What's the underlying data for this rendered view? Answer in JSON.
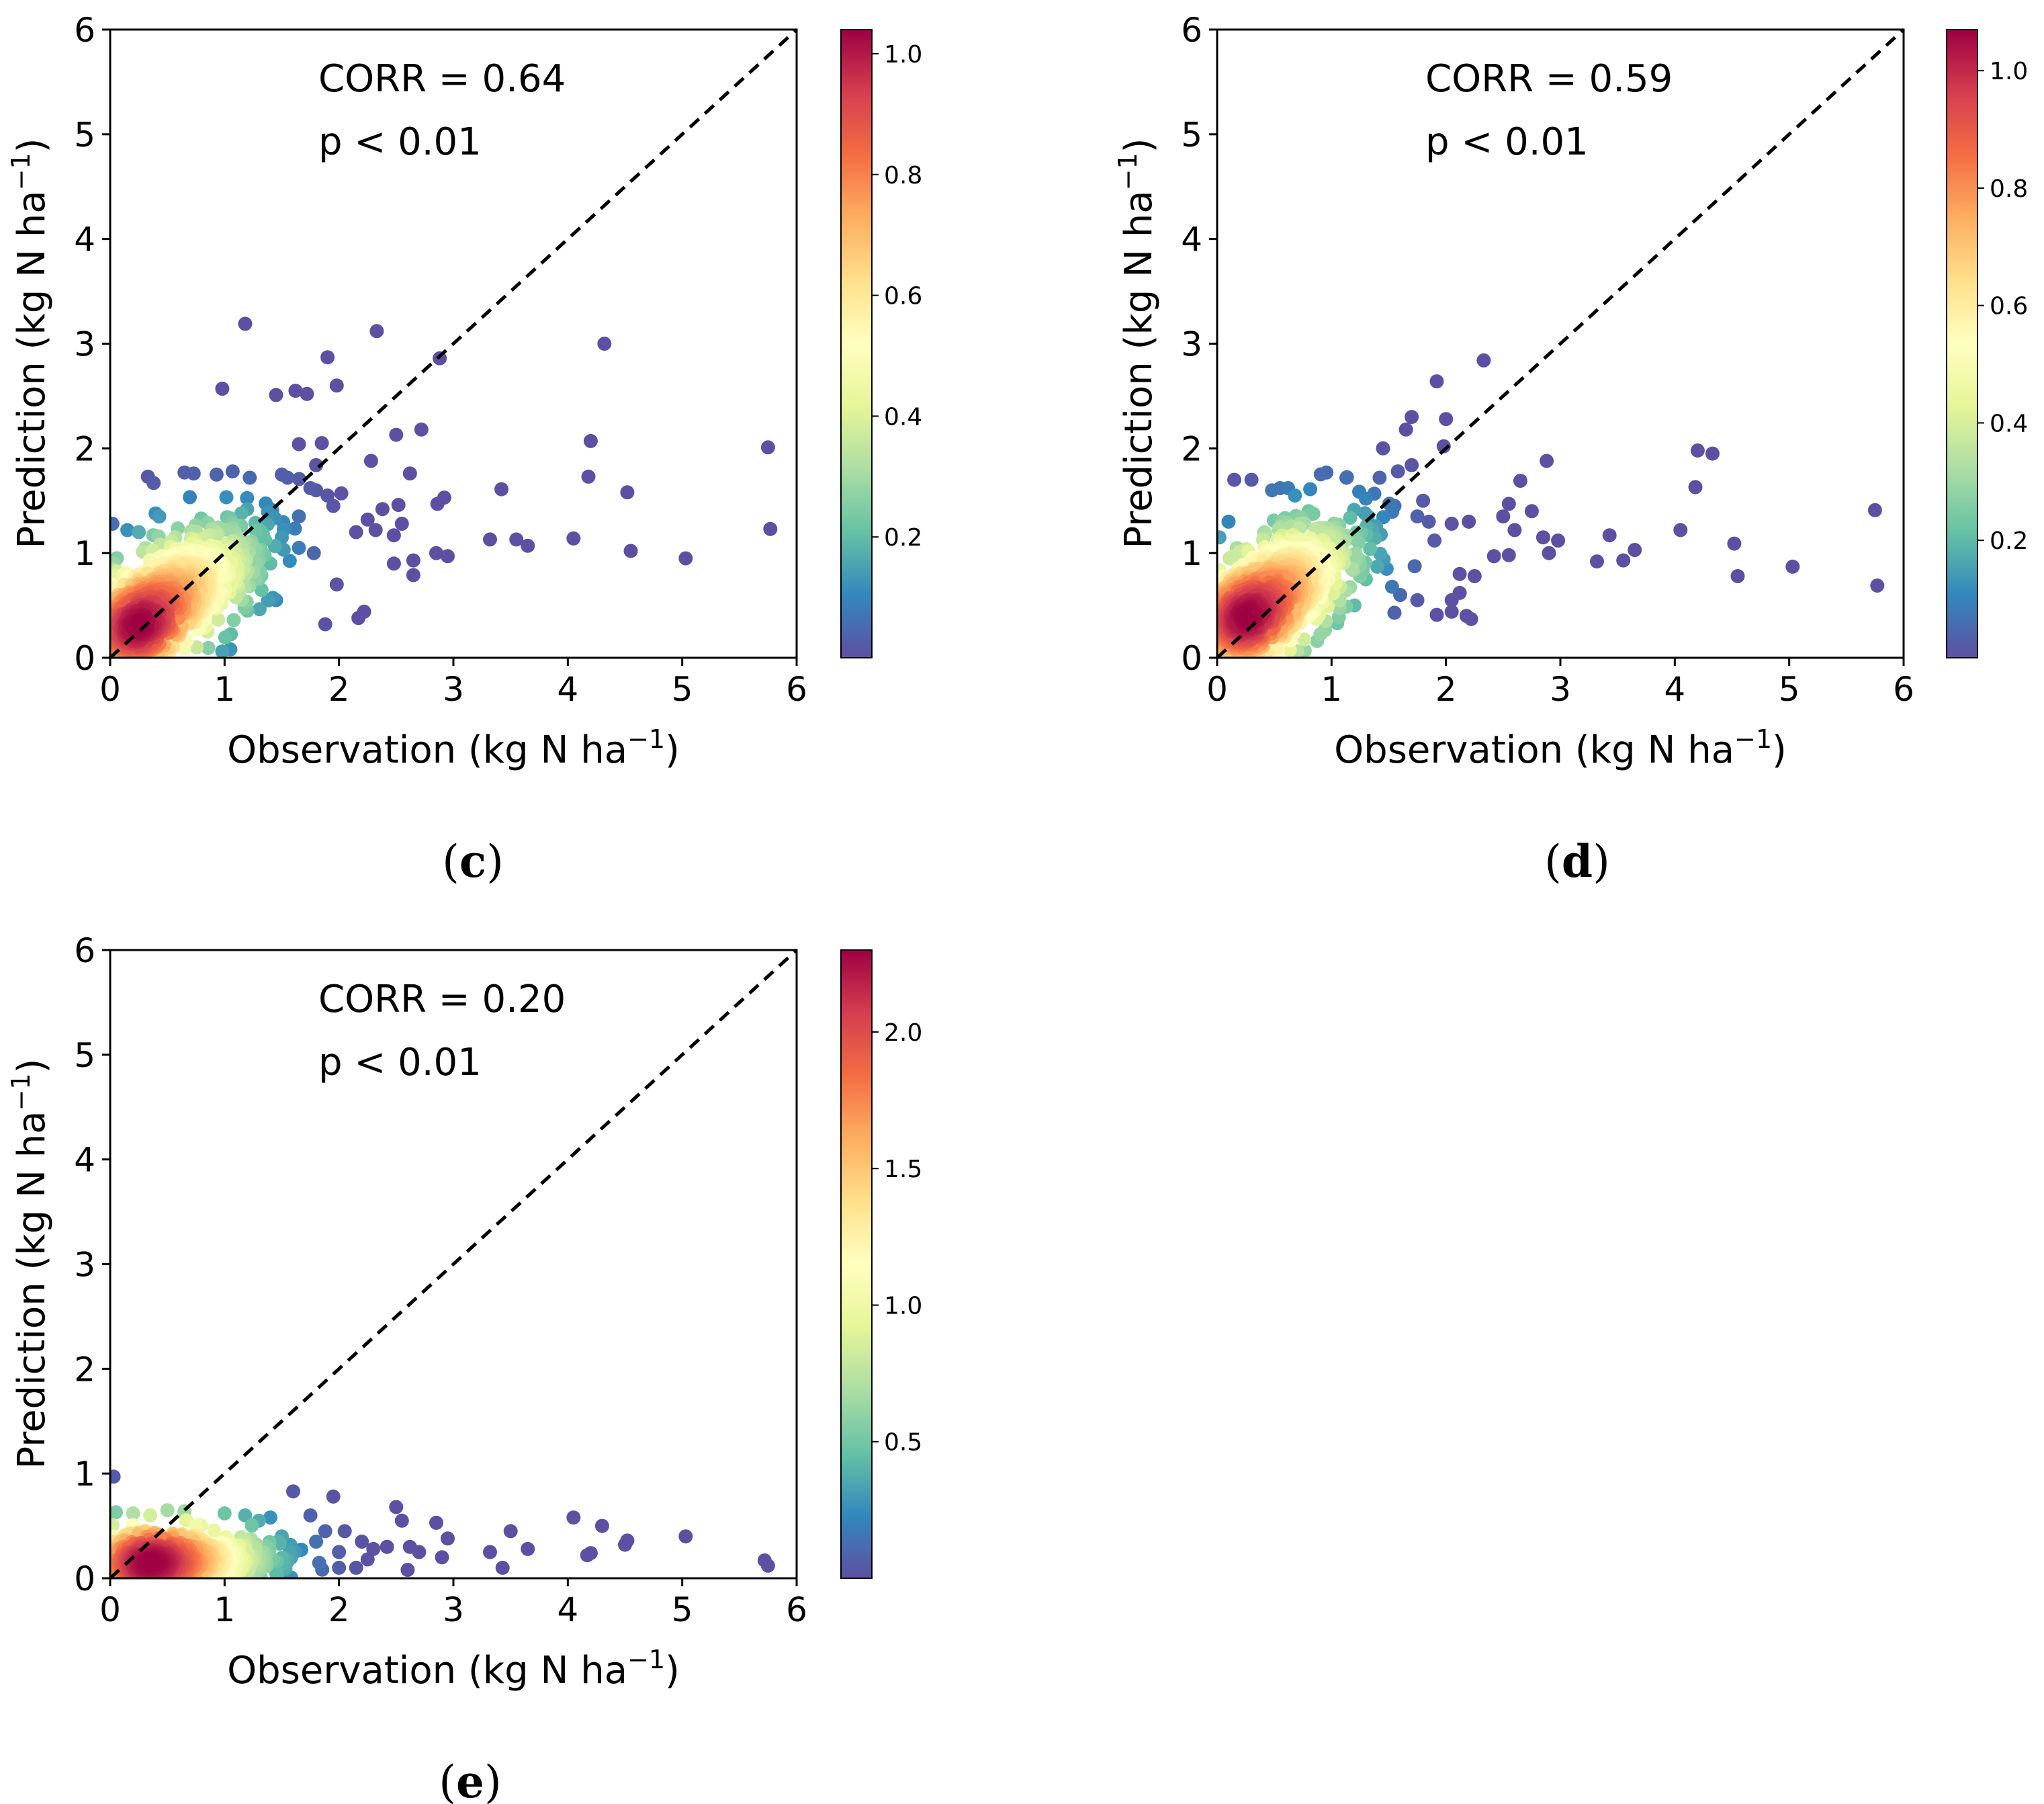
{
  "chart_data": [
    {
      "id": "c",
      "type": "scatter",
      "panel_label": "c",
      "xlabel": "Observation (kg N ha",
      "ylabel": "Prediction (kg N ha",
      "label_unit_exp": "−1",
      "label_close": ")",
      "xlim": [
        0,
        6
      ],
      "ylim": [
        0,
        6
      ],
      "xticks": [
        0,
        1,
        2,
        3,
        4,
        5,
        6
      ],
      "yticks": [
        0,
        1,
        2,
        3,
        4,
        5,
        6
      ],
      "annotation_corr": "CORR = 0.64",
      "annotation_p": "p < 0.01",
      "reference_line": "1:1 dashed",
      "colorbar": {
        "min": 0,
        "max": 1.04,
        "ticks": [
          0.2,
          0.4,
          0.6,
          0.8,
          1.0
        ],
        "tick_labels": [
          "0.2",
          "0.4",
          "0.6",
          "0.8",
          "1.0"
        ]
      },
      "outliers": [
        [
          1.18,
          3.19
        ],
        [
          2.33,
          3.12
        ],
        [
          4.32,
          3.0
        ],
        [
          1.9,
          2.87
        ],
        [
          2.88,
          2.86
        ],
        [
          0.98,
          2.57
        ],
        [
          1.98,
          2.6
        ],
        [
          1.45,
          2.51
        ],
        [
          1.62,
          2.55
        ],
        [
          1.72,
          2.52
        ],
        [
          2.5,
          2.13
        ],
        [
          2.72,
          2.18
        ],
        [
          1.65,
          2.04
        ],
        [
          1.85,
          2.05
        ],
        [
          4.2,
          2.07
        ],
        [
          5.75,
          2.01
        ],
        [
          2.28,
          1.88
        ],
        [
          1.8,
          1.84
        ],
        [
          2.62,
          1.76
        ],
        [
          4.18,
          1.73
        ],
        [
          3.42,
          1.61
        ],
        [
          4.52,
          1.58
        ],
        [
          2.92,
          1.53
        ],
        [
          2.52,
          1.46
        ],
        [
          2.86,
          1.47
        ],
        [
          2.38,
          1.42
        ],
        [
          2.25,
          1.32
        ],
        [
          2.55,
          1.28
        ],
        [
          5.77,
          1.23
        ],
        [
          2.32,
          1.22
        ],
        [
          2.15,
          1.2
        ],
        [
          2.48,
          1.17
        ],
        [
          3.32,
          1.13
        ],
        [
          3.55,
          1.13
        ],
        [
          3.65,
          1.07
        ],
        [
          4.05,
          1.14
        ],
        [
          2.85,
          1.0
        ],
        [
          2.95,
          0.97
        ],
        [
          4.55,
          1.02
        ],
        [
          5.03,
          0.95
        ],
        [
          2.48,
          0.9
        ],
        [
          2.65,
          0.93
        ],
        [
          2.65,
          0.79
        ],
        [
          1.98,
          0.7
        ],
        [
          2.22,
          0.44
        ],
        [
          2.17,
          0.38
        ],
        [
          1.88,
          0.32
        ],
        [
          1.05,
          0.08
        ],
        [
          0.98,
          0.06
        ],
        [
          0.02,
          1.28
        ],
        [
          0.33,
          1.73
        ],
        [
          0.38,
          1.67
        ],
        [
          0.65,
          1.77
        ],
        [
          0.73,
          1.76
        ],
        [
          0.93,
          1.75
        ],
        [
          1.07,
          1.78
        ],
        [
          1.22,
          1.72
        ],
        [
          1.5,
          1.75
        ],
        [
          1.55,
          1.72
        ],
        [
          1.75,
          1.62
        ],
        [
          1.8,
          1.6
        ],
        [
          1.9,
          1.55
        ],
        [
          2.02,
          1.57
        ],
        [
          1.95,
          1.45
        ],
        [
          1.65,
          1.35
        ],
        [
          1.5,
          1.15
        ],
        [
          1.65,
          1.05
        ],
        [
          1.78,
          1.0
        ],
        [
          1.4,
          0.9
        ],
        [
          1.3,
          0.75
        ],
        [
          1.45,
          0.55
        ],
        [
          1.2,
          0.45
        ],
        [
          0.85,
          0.25
        ],
        [
          0.55,
          0.1
        ],
        [
          1.08,
          0.36
        ],
        [
          0.15,
          1.22
        ],
        [
          0.25,
          1.2
        ],
        [
          1.35,
          0.98
        ]
      ],
      "cluster": {
        "cx": 0.55,
        "cy": 0.62,
        "sx": 0.38,
        "sy": 0.34,
        "rho": 0.62,
        "n": 700,
        "seed": 11,
        "dense_cx": 0.15,
        "dense_cy": 0.22,
        "dense_sx": 0.14,
        "dense_sy": 0.14,
        "dense_n": 260
      }
    },
    {
      "id": "d",
      "type": "scatter",
      "panel_label": "d",
      "xlabel": "Observation (kg N ha",
      "ylabel": "Prediction (kg N ha",
      "label_unit_exp": "−1",
      "label_close": ")",
      "xlim": [
        0,
        6
      ],
      "ylim": [
        0,
        6
      ],
      "xticks": [
        0,
        1,
        2,
        3,
        4,
        5,
        6
      ],
      "yticks": [
        0,
        1,
        2,
        3,
        4,
        5,
        6
      ],
      "annotation_corr": "CORR = 0.59",
      "annotation_p": "p < 0.01",
      "reference_line": "1:1 dashed",
      "colorbar": {
        "min": 0,
        "max": 1.07,
        "ticks": [
          0.2,
          0.4,
          0.6,
          0.8,
          1.0
        ],
        "tick_labels": [
          "0.2",
          "0.4",
          "0.6",
          "0.8",
          "1.0"
        ]
      },
      "outliers": [
        [
          2.33,
          2.84
        ],
        [
          1.92,
          2.64
        ],
        [
          1.7,
          2.3
        ],
        [
          2.0,
          2.28
        ],
        [
          1.65,
          2.18
        ],
        [
          1.98,
          2.02
        ],
        [
          1.45,
          2.0
        ],
        [
          2.88,
          1.88
        ],
        [
          1.42,
          1.72
        ],
        [
          1.7,
          1.84
        ],
        [
          1.13,
          1.72
        ],
        [
          4.2,
          1.98
        ],
        [
          4.33,
          1.95
        ],
        [
          4.18,
          1.63
        ],
        [
          5.75,
          1.41
        ],
        [
          2.55,
          1.47
        ],
        [
          2.65,
          1.69
        ],
        [
          2.75,
          1.4
        ],
        [
          1.3,
          1.52
        ],
        [
          1.55,
          1.45
        ],
        [
          1.75,
          1.35
        ],
        [
          1.85,
          1.3
        ],
        [
          2.05,
          1.28
        ],
        [
          2.2,
          1.3
        ],
        [
          2.5,
          1.35
        ],
        [
          2.6,
          1.22
        ],
        [
          2.85,
          1.15
        ],
        [
          2.98,
          1.12
        ],
        [
          2.9,
          1.0
        ],
        [
          2.55,
          0.98
        ],
        [
          2.42,
          0.97
        ],
        [
          3.32,
          0.92
        ],
        [
          3.43,
          1.17
        ],
        [
          3.55,
          0.93
        ],
        [
          3.65,
          1.03
        ],
        [
          4.05,
          1.22
        ],
        [
          4.52,
          1.09
        ],
        [
          4.55,
          0.78
        ],
        [
          5.03,
          0.87
        ],
        [
          5.77,
          0.69
        ],
        [
          2.12,
          0.8
        ],
        [
          2.25,
          0.78
        ],
        [
          2.12,
          0.62
        ],
        [
          2.05,
          0.55
        ],
        [
          2.05,
          0.44
        ],
        [
          1.92,
          0.41
        ],
        [
          2.18,
          0.4
        ],
        [
          2.22,
          0.37
        ],
        [
          1.75,
          0.55
        ],
        [
          1.6,
          0.6
        ],
        [
          1.55,
          0.43
        ],
        [
          1.2,
          0.5
        ],
        [
          1.05,
          0.33
        ],
        [
          0.95,
          0.35
        ],
        [
          0.15,
          1.7
        ],
        [
          0.3,
          1.7
        ],
        [
          0.48,
          1.6
        ],
        [
          0.62,
          1.62
        ],
        [
          0.68,
          1.55
        ],
        [
          0.1,
          1.3
        ],
        [
          0.02,
          1.15
        ],
        [
          0.55,
          1.62
        ],
        [
          1.58,
          1.78
        ],
        [
          1.8,
          1.5
        ],
        [
          1.4,
          0.87
        ],
        [
          1.3,
          0.75
        ],
        [
          1.9,
          1.12
        ]
      ],
      "cluster": {
        "cx": 0.5,
        "cy": 0.62,
        "sx": 0.36,
        "sy": 0.34,
        "rho": 0.6,
        "n": 700,
        "seed": 23,
        "dense_cx": 0.14,
        "dense_cy": 0.3,
        "dense_sx": 0.14,
        "dense_sy": 0.16,
        "dense_n": 260
      }
    },
    {
      "id": "e",
      "type": "scatter",
      "panel_label": "e",
      "xlabel": "Observation (kg N ha",
      "ylabel": "Prediction (kg N ha",
      "label_unit_exp": "−1",
      "label_close": ")",
      "xlim": [
        0,
        6
      ],
      "ylim": [
        0,
        6
      ],
      "xticks": [
        0,
        1,
        2,
        3,
        4,
        5,
        6
      ],
      "yticks": [
        0,
        1,
        2,
        3,
        4,
        5,
        6
      ],
      "annotation_corr": "CORR = 0.20",
      "annotation_p": "p < 0.01",
      "reference_line": "1:1 dashed",
      "colorbar": {
        "min": 0,
        "max": 2.3,
        "ticks": [
          0.5,
          1.0,
          1.5,
          2.0
        ],
        "tick_labels": [
          "0.5",
          "1.0",
          "1.5",
          "2.0"
        ]
      },
      "outliers": [
        [
          0.03,
          0.97
        ],
        [
          1.6,
          0.83
        ],
        [
          1.95,
          0.78
        ],
        [
          2.5,
          0.68
        ],
        [
          0.05,
          0.63
        ],
        [
          0.2,
          0.62
        ],
        [
          0.35,
          0.6
        ],
        [
          0.5,
          0.65
        ],
        [
          0.65,
          0.64
        ],
        [
          1.0,
          0.62
        ],
        [
          1.18,
          0.6
        ],
        [
          1.4,
          0.58
        ],
        [
          1.3,
          0.55
        ],
        [
          1.75,
          0.6
        ],
        [
          2.55,
          0.55
        ],
        [
          2.85,
          0.53
        ],
        [
          4.05,
          0.58
        ],
        [
          4.3,
          0.5
        ],
        [
          3.5,
          0.45
        ],
        [
          5.03,
          0.4
        ],
        [
          4.52,
          0.36
        ],
        [
          4.5,
          0.32
        ],
        [
          2.95,
          0.38
        ],
        [
          3.65,
          0.28
        ],
        [
          3.32,
          0.25
        ],
        [
          4.2,
          0.24
        ],
        [
          4.17,
          0.22
        ],
        [
          5.72,
          0.17
        ],
        [
          5.75,
          0.12
        ],
        [
          3.43,
          0.1
        ],
        [
          2.9,
          0.2
        ],
        [
          2.62,
          0.3
        ],
        [
          2.7,
          0.25
        ],
        [
          2.42,
          0.3
        ],
        [
          2.2,
          0.35
        ],
        [
          2.05,
          0.45
        ],
        [
          1.88,
          0.45
        ],
        [
          2.25,
          0.18
        ],
        [
          2.15,
          0.1
        ],
        [
          2.6,
          0.08
        ],
        [
          2.0,
          0.1
        ],
        [
          1.5,
          0.4
        ],
        [
          0.75,
          0.5
        ],
        [
          2.3,
          0.28
        ],
        [
          2.0,
          0.25
        ],
        [
          1.8,
          0.35
        ]
      ],
      "cluster": {
        "cx": 0.55,
        "cy": 0.18,
        "sx": 0.45,
        "sy": 0.11,
        "rho": 0.1,
        "n": 800,
        "seed": 37,
        "dense_cx": 0.25,
        "dense_cy": 0.1,
        "dense_sx": 0.18,
        "dense_sy": 0.06,
        "dense_n": 300
      }
    }
  ]
}
